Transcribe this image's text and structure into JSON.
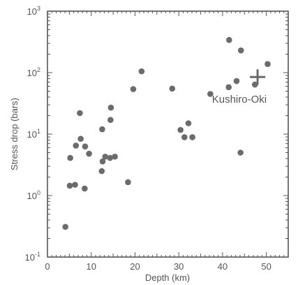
{
  "chart_data": {
    "type": "scatter",
    "xlabel": "Depth (km)",
    "ylabel": "Stress drop (bars)",
    "xlim": [
      0,
      55
    ],
    "ylim": [
      0.1,
      1000
    ],
    "y_scale": "log",
    "x_ticks": [
      0,
      10,
      20,
      30,
      40,
      50
    ],
    "y_ticks": [
      {
        "value": 0.1,
        "base": "10",
        "exp": "-1"
      },
      {
        "value": 1,
        "base": "10",
        "exp": "0"
      },
      {
        "value": 10,
        "base": "10",
        "exp": "1"
      },
      {
        "value": 100,
        "base": "10",
        "exp": "2"
      },
      {
        "value": 1000,
        "base": "10",
        "exp": "3"
      }
    ],
    "grid": false,
    "marker_color": "#6b6b6b",
    "axis_color": "#555555",
    "points": [
      {
        "x": 4.1,
        "y": 0.31
      },
      {
        "x": 5.1,
        "y": 1.45
      },
      {
        "x": 5.2,
        "y": 4.1
      },
      {
        "x": 6.3,
        "y": 1.5
      },
      {
        "x": 6.5,
        "y": 6.5
      },
      {
        "x": 7.4,
        "y": 22
      },
      {
        "x": 7.6,
        "y": 8.4
      },
      {
        "x": 8.5,
        "y": 1.3
      },
      {
        "x": 8.6,
        "y": 6.3
      },
      {
        "x": 9.5,
        "y": 4.8
      },
      {
        "x": 12.4,
        "y": 2.5
      },
      {
        "x": 12.5,
        "y": 12
      },
      {
        "x": 12.6,
        "y": 3.6
      },
      {
        "x": 13.2,
        "y": 4.3
      },
      {
        "x": 14.3,
        "y": 4.1
      },
      {
        "x": 14.4,
        "y": 17
      },
      {
        "x": 14.5,
        "y": 27
      },
      {
        "x": 15.4,
        "y": 4.3
      },
      {
        "x": 18.4,
        "y": 1.65
      },
      {
        "x": 19.6,
        "y": 54
      },
      {
        "x": 21.5,
        "y": 105
      },
      {
        "x": 28.5,
        "y": 55
      },
      {
        "x": 30.4,
        "y": 11.7
      },
      {
        "x": 31.3,
        "y": 8.9
      },
      {
        "x": 32.2,
        "y": 15
      },
      {
        "x": 33.1,
        "y": 8.9
      },
      {
        "x": 37.2,
        "y": 45
      },
      {
        "x": 41.4,
        "y": 58
      },
      {
        "x": 41.5,
        "y": 340
      },
      {
        "x": 43.2,
        "y": 73
      },
      {
        "x": 44.1,
        "y": 5
      },
      {
        "x": 44.2,
        "y": 230
      },
      {
        "x": 47.4,
        "y": 64
      },
      {
        "x": 50.3,
        "y": 138
      }
    ],
    "annotation": {
      "label": "Kushiro-Oki",
      "marker": "+",
      "x": 48.0,
      "y": 85
    }
  }
}
